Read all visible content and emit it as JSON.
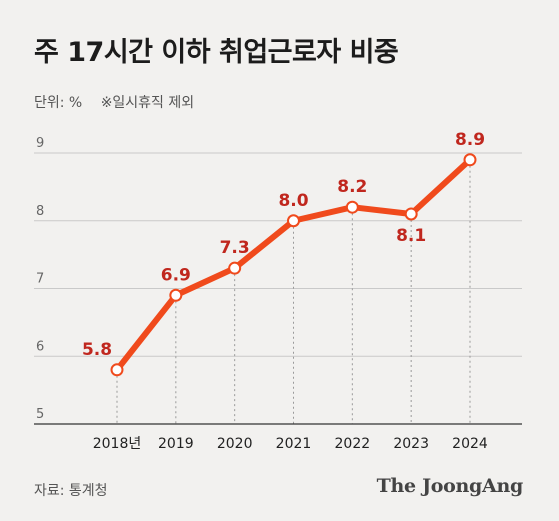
{
  "title": "주 17시간 이하 취업근로자 비중",
  "unit_label": "단위: %",
  "unit_note": "※일시휴직 제외",
  "source": "자료: 통계청",
  "brand": "The JoongAng",
  "colors": {
    "line": "#f04a1c",
    "label": "#c0271e",
    "grid": "#c9c9c9",
    "axis": "#333333",
    "background": "#f2f1ef"
  },
  "chart_data": {
    "type": "line",
    "title": "주 17시간 이하 취업근로자 비중",
    "xlabel": "",
    "ylabel": "",
    "categories": [
      "2018년",
      "2019",
      "2020",
      "2021",
      "2022",
      "2023",
      "2024"
    ],
    "values": [
      5.8,
      6.9,
      7.3,
      8.0,
      8.2,
      8.1,
      8.9
    ],
    "data_labels": [
      "5.8",
      "6.9",
      "7.3",
      "8.0",
      "8.2",
      "8.1",
      "8.9"
    ],
    "ylim": [
      5,
      9
    ],
    "yticks": [
      5,
      6,
      7,
      8,
      9
    ],
    "grid": true,
    "legend": "none"
  }
}
